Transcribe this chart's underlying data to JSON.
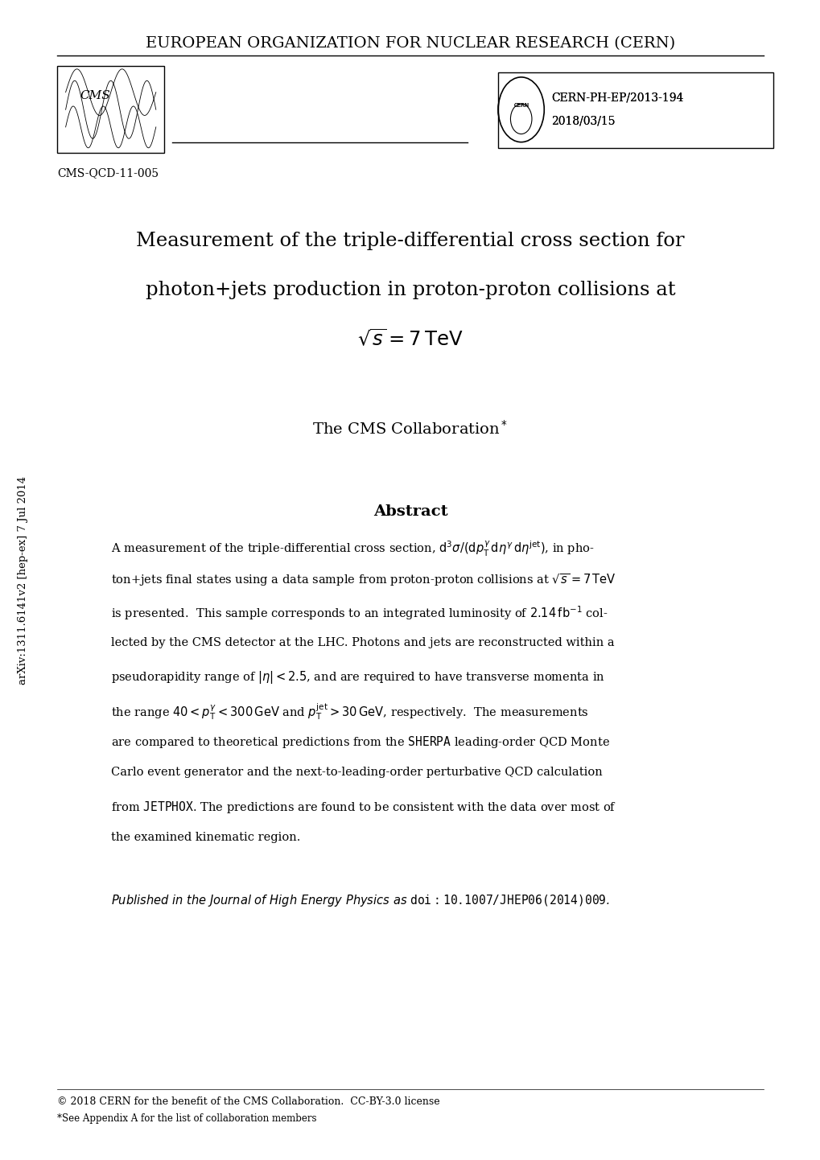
{
  "header_text": "EUROPEAN ORGANIZATION FOR NUCLEAR RESEARCH (CERN)",
  "report_number": "CERN-PH-EP/2013-194",
  "report_date": "2018/03/15",
  "cms_label": "CMS-QCD-11-005",
  "title_line1": "Measurement of the triple-differential cross section for",
  "title_line2": "photon+jets production in proton-proton collisions at",
  "title_line3": "$\\sqrt{s} = 7\\,\\mathrm{TeV}$",
  "collaboration": "The CMS Collaboration",
  "collaboration_note": "*",
  "abstract_title": "Abstract",
  "abstract_body": "A measurement of the triple-differential cross section, $\\mathrm{d}^3\\sigma/(\\mathrm{d}p_\\mathrm{T}^\\gamma\\,\\mathrm{d}\\eta^\\gamma\\,\\mathrm{d}\\eta^\\mathrm{jet})$, in photon+jets final states using a data sample from proton-proton collisions at $\\sqrt{s} = 7\\,\\mathrm{TeV}$ is presented.  This sample corresponds to an integrated luminosity of $2.14\\,\\mathrm{fb}^{-1}$ collected by the CMS detector at the LHC. Photons and jets are reconstructed within a pseudorapidity range of $|\\eta| < 2.5$, and are required to have transverse momenta in the range $40 < p_\\mathrm{T}^\\gamma < 300\\,\\mathrm{GeV}$ and $p_\\mathrm{T}^\\mathrm{jet} > 30\\,\\mathrm{GeV}$, respectively.  The measurements are compared to theoretical predictions from the S\\textsc{HERPA} leading-order QCD Monte Carlo event generator and the next-to-leading-order perturbative QCD calculation from J\\textsc{ETPHOX}. The predictions are found to be consistent with the data over most of the examined kinematic region.",
  "published_italic": "Published in the Journal of High Energy Physics as",
  "doi_text": "doi:10.1007/JHEP06(2014)009",
  "footnote": "*See Appendix A for the list of collaboration members",
  "copyright": "© 2018 CERN for the benefit of the CMS Collaboration.  CC-BY-3.0 license",
  "arxiv_label": "arXiv:1311.6141v2 [hep-ex] 7 Jul 2014",
  "bg_color": "#ffffff",
  "text_color": "#000000"
}
